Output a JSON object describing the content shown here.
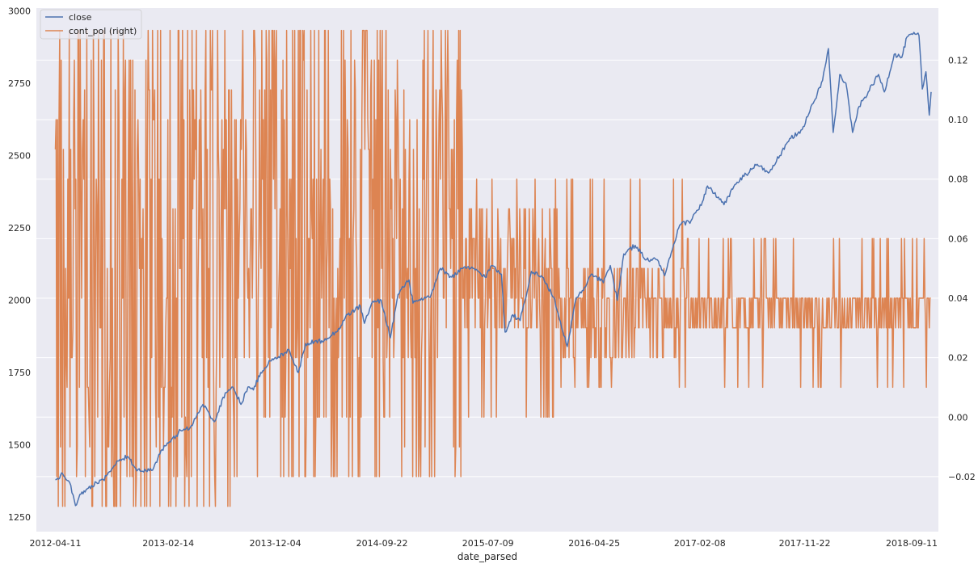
{
  "chart_data": {
    "type": "line",
    "title": "",
    "xlabel": "date_parsed",
    "x_ticks": [
      "2012-04-11",
      "2013-02-14",
      "2013-12-04",
      "2014-09-22",
      "2015-07-09",
      "2016-04-25",
      "2017-02-08",
      "2017-11-22",
      "2018-09-11"
    ],
    "x_range": [
      "2012-02-19",
      "2018-11-23"
    ],
    "y_left": {
      "ticks": [
        1250,
        1500,
        1750,
        2000,
        2250,
        2500,
        2750,
        3000
      ],
      "ylim": [
        1200,
        3010
      ]
    },
    "y_right": {
      "ticks": [
        -0.02,
        0.0,
        0.02,
        0.04,
        0.06,
        0.08,
        0.1,
        0.12
      ],
      "tick_labels": [
        "−0.02",
        "0.00",
        "0.02",
        "0.04",
        "0.06",
        "0.08",
        "0.10",
        "0.12"
      ],
      "ylim": [
        -0.0385,
        0.1375
      ]
    },
    "grid": true,
    "legend": {
      "placement": "top-left",
      "entries": [
        "close",
        "cont_pol (right)"
      ]
    },
    "colors": {
      "background": "#eaeaf2",
      "grid": "#ffffff",
      "close": "#4c72b0",
      "cont_pol": "#dd8452"
    },
    "series": [
      {
        "name": "close",
        "axis": "left",
        "points": [
          [
            "2012-04-11",
            1380
          ],
          [
            "2012-05-01",
            1400
          ],
          [
            "2012-05-20",
            1370
          ],
          [
            "2012-06-05",
            1290
          ],
          [
            "2012-06-20",
            1330
          ],
          [
            "2012-07-10",
            1350
          ],
          [
            "2012-08-01",
            1370
          ],
          [
            "2012-08-20",
            1380
          ],
          [
            "2012-09-15",
            1420
          ],
          [
            "2012-10-05",
            1450
          ],
          [
            "2012-10-25",
            1460
          ],
          [
            "2012-11-10",
            1430
          ],
          [
            "2012-11-20",
            1410
          ],
          [
            "2012-12-15",
            1410
          ],
          [
            "2013-01-05",
            1420
          ],
          [
            "2013-01-25",
            1480
          ],
          [
            "2013-02-20",
            1510
          ],
          [
            "2013-03-20",
            1550
          ],
          [
            "2013-04-15",
            1560
          ],
          [
            "2013-05-20",
            1640
          ],
          [
            "2013-06-20",
            1580
          ],
          [
            "2013-07-20",
            1680
          ],
          [
            "2013-08-10",
            1700
          ],
          [
            "2013-09-01",
            1640
          ],
          [
            "2013-09-20",
            1700
          ],
          [
            "2013-10-05",
            1690
          ],
          [
            "2013-10-25",
            1750
          ],
          [
            "2013-11-20",
            1790
          ],
          [
            "2013-12-10",
            1800
          ],
          [
            "2014-01-10",
            1830
          ],
          [
            "2014-02-05",
            1750
          ],
          [
            "2014-02-25",
            1850
          ],
          [
            "2014-04-10",
            1860
          ],
          [
            "2014-05-20",
            1890
          ],
          [
            "2014-06-20",
            1950
          ],
          [
            "2014-07-25",
            1980
          ],
          [
            "2014-08-05",
            1920
          ],
          [
            "2014-08-25",
            1990
          ],
          [
            "2014-09-20",
            2000
          ],
          [
            "2014-10-15",
            1870
          ],
          [
            "2014-11-05",
            2020
          ],
          [
            "2014-12-05",
            2070
          ],
          [
            "2014-12-16",
            1990
          ],
          [
            "2015-01-05",
            2000
          ],
          [
            "2015-02-01",
            2010
          ],
          [
            "2015-03-01",
            2110
          ],
          [
            "2015-04-01",
            2080
          ],
          [
            "2015-05-01",
            2110
          ],
          [
            "2015-06-01",
            2110
          ],
          [
            "2015-07-01",
            2080
          ],
          [
            "2015-07-20",
            2120
          ],
          [
            "2015-08-15",
            2090
          ],
          [
            "2015-08-25",
            1890
          ],
          [
            "2015-09-15",
            1950
          ],
          [
            "2015-10-05",
            1930
          ],
          [
            "2015-11-05",
            2100
          ],
          [
            "2015-12-05",
            2080
          ],
          [
            "2016-01-05",
            2010
          ],
          [
            "2016-02-11",
            1840
          ],
          [
            "2016-03-05",
            2000
          ],
          [
            "2016-04-20",
            2090
          ],
          [
            "2016-05-20",
            2060
          ],
          [
            "2016-06-08",
            2120
          ],
          [
            "2016-06-27",
            2000
          ],
          [
            "2016-07-15",
            2160
          ],
          [
            "2016-08-15",
            2190
          ],
          [
            "2016-09-15",
            2140
          ],
          [
            "2016-10-15",
            2140
          ],
          [
            "2016-11-04",
            2085
          ],
          [
            "2016-12-01",
            2200
          ],
          [
            "2016-12-15",
            2260
          ],
          [
            "2017-01-15",
            2275
          ],
          [
            "2017-02-15",
            2340
          ],
          [
            "2017-03-01",
            2395
          ],
          [
            "2017-04-15",
            2330
          ],
          [
            "2017-05-15",
            2400
          ],
          [
            "2017-06-15",
            2435
          ],
          [
            "2017-07-15",
            2470
          ],
          [
            "2017-08-15",
            2440
          ],
          [
            "2017-09-15",
            2500
          ],
          [
            "2017-10-15",
            2560
          ],
          [
            "2017-11-15",
            2590
          ],
          [
            "2017-12-15",
            2680
          ],
          [
            "2018-01-10",
            2760
          ],
          [
            "2018-01-26",
            2870
          ],
          [
            "2018-02-08",
            2580
          ],
          [
            "2018-02-26",
            2780
          ],
          [
            "2018-03-15",
            2750
          ],
          [
            "2018-04-02",
            2580
          ],
          [
            "2018-04-20",
            2670
          ],
          [
            "2018-05-15",
            2720
          ],
          [
            "2018-06-12",
            2780
          ],
          [
            "2018-06-28",
            2720
          ],
          [
            "2018-07-25",
            2850
          ],
          [
            "2018-08-15",
            2840
          ],
          [
            "2018-08-29",
            2910
          ],
          [
            "2018-09-20",
            2920
          ],
          [
            "2018-10-01",
            2915
          ],
          [
            "2018-10-10",
            2730
          ],
          [
            "2018-10-20",
            2790
          ],
          [
            "2018-10-29",
            2640
          ],
          [
            "2018-11-03",
            2720
          ]
        ]
      },
      {
        "name": "cont_pol (right)",
        "axis": "right",
        "segments": [
          {
            "from": "2012-04-11",
            "to": "2013-08-15",
            "levels": [
              -0.03,
              -0.02,
              -0.01,
              0.0,
              0.01,
              0.02,
              0.03,
              0.04,
              0.05,
              0.06,
              0.07,
              0.08,
              0.09,
              0.1,
              0.11,
              0.12,
              0.13
            ],
            "min": -0.03,
            "max": 0.13
          },
          {
            "from": "2013-08-15",
            "to": "2014-10-20",
            "levels": [
              -0.02,
              0.0,
              0.02,
              0.03,
              0.04,
              0.05,
              0.06,
              0.07,
              0.08,
              0.09,
              0.1,
              0.11,
              0.12,
              0.13
            ],
            "min": -0.02,
            "max": 0.13
          },
          {
            "from": "2014-10-20",
            "to": "2015-05-01",
            "levels": [
              -0.01,
              0.02,
              0.03,
              0.04,
              0.05,
              0.06,
              0.07,
              0.08,
              0.09,
              0.1,
              0.11,
              0.12
            ],
            "min": -0.02,
            "max": 0.13
          },
          {
            "from": "2015-05-01",
            "to": "2016-01-15",
            "levels": [
              0.03,
              0.04,
              0.05,
              0.06,
              0.07
            ],
            "min": 0.0,
            "max": 0.08
          },
          {
            "from": "2016-01-15",
            "to": "2017-01-01",
            "levels": [
              0.02,
              0.03,
              0.04,
              0.05
            ],
            "min": 0.01,
            "max": 0.08
          },
          {
            "from": "2017-01-01",
            "to": "2018-11-03",
            "levels": [
              0.03,
              0.04
            ],
            "min": 0.01,
            "max": 0.06
          }
        ]
      }
    ]
  }
}
